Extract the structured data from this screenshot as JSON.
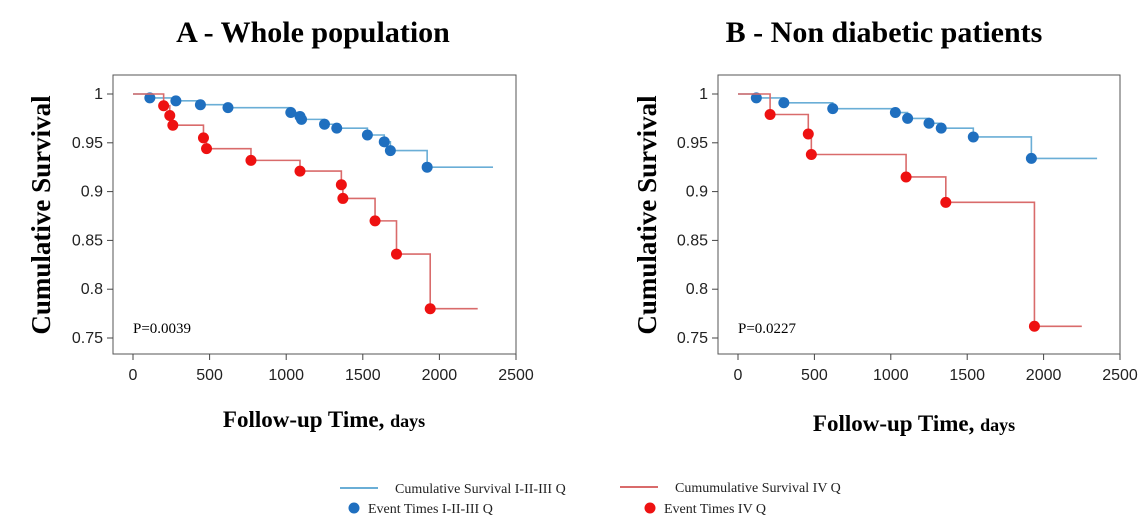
{
  "chart_data": [
    {
      "type": "line",
      "title": "A - Whole population",
      "ylabel": "Cumulative Survival",
      "xlabel": "Follow-up Time,",
      "xlabel_unit": "days",
      "annotation": "P=0.0039",
      "xlim": [
        0,
        2500
      ],
      "ylim": [
        0.75,
        1.0
      ],
      "xticks": [
        "0",
        "500",
        "1000",
        "1500",
        "2000",
        "2500"
      ],
      "yticks": [
        "0.75",
        "0.8",
        "0.85",
        "0.9",
        "0.95",
        "1"
      ],
      "series": [
        {
          "name": "Cumulative Survival I-II-III Q",
          "color": "#6aaed6",
          "steps": [
            [
              0,
              1.0
            ],
            [
              110,
              0.996
            ],
            [
              280,
              0.993
            ],
            [
              440,
              0.989
            ],
            [
              620,
              0.986
            ],
            [
              1030,
              0.981
            ],
            [
              1090,
              0.977
            ],
            [
              1100,
              0.974
            ],
            [
              1250,
              0.969
            ],
            [
              1330,
              0.965
            ],
            [
              1530,
              0.958
            ],
            [
              1640,
              0.951
            ],
            [
              1680,
              0.942
            ],
            [
              1920,
              0.925
            ],
            [
              2350,
              0.925
            ]
          ],
          "events": [
            [
              110,
              0.996
            ],
            [
              280,
              0.993
            ],
            [
              440,
              0.989
            ],
            [
              620,
              0.986
            ],
            [
              1030,
              0.981
            ],
            [
              1090,
              0.977
            ],
            [
              1100,
              0.974
            ],
            [
              1250,
              0.969
            ],
            [
              1330,
              0.965
            ],
            [
              1530,
              0.958
            ],
            [
              1640,
              0.951
            ],
            [
              1680,
              0.942
            ],
            [
              1920,
              0.925
            ]
          ]
        },
        {
          "name": "Cumumulative Survival IV Q",
          "color": "#d96b6b",
          "steps": [
            [
              0,
              1.0
            ],
            [
              200,
              0.988
            ],
            [
              240,
              0.978
            ],
            [
              260,
              0.968
            ],
            [
              460,
              0.955
            ],
            [
              480,
              0.944
            ],
            [
              770,
              0.932
            ],
            [
              1090,
              0.921
            ],
            [
              1360,
              0.907
            ],
            [
              1370,
              0.893
            ],
            [
              1580,
              0.87
            ],
            [
              1720,
              0.836
            ],
            [
              1940,
              0.78
            ],
            [
              2250,
              0.78
            ]
          ],
          "events": [
            [
              200,
              0.988
            ],
            [
              240,
              0.978
            ],
            [
              260,
              0.968
            ],
            [
              460,
              0.955
            ],
            [
              480,
              0.944
            ],
            [
              770,
              0.932
            ],
            [
              1090,
              0.921
            ],
            [
              1360,
              0.907
            ],
            [
              1370,
              0.893
            ],
            [
              1580,
              0.87
            ],
            [
              1720,
              0.836
            ],
            [
              1940,
              0.78
            ]
          ]
        }
      ]
    },
    {
      "type": "line",
      "title": "B - Non diabetic patients",
      "ylabel": "Cumulative Survival",
      "xlabel": "Follow-up Time,",
      "xlabel_unit": "days",
      "annotation": "P=0.0227",
      "xlim": [
        0,
        2500
      ],
      "ylim": [
        0.75,
        1.0
      ],
      "xticks": [
        "0",
        "500",
        "1000",
        "1500",
        "2000",
        "2500"
      ],
      "yticks": [
        "0.75",
        "0.8",
        "0.85",
        "0.9",
        "0.95",
        "1"
      ],
      "series": [
        {
          "name": "Cumulative Survival I-II-III Q",
          "color": "#6aaed6",
          "steps": [
            [
              0,
              1.0
            ],
            [
              120,
              0.996
            ],
            [
              300,
              0.991
            ],
            [
              620,
              0.985
            ],
            [
              1030,
              0.981
            ],
            [
              1110,
              0.975
            ],
            [
              1250,
              0.97
            ],
            [
              1330,
              0.965
            ],
            [
              1540,
              0.956
            ],
            [
              1920,
              0.934
            ],
            [
              2350,
              0.934
            ]
          ],
          "events": [
            [
              120,
              0.996
            ],
            [
              300,
              0.991
            ],
            [
              620,
              0.985
            ],
            [
              1030,
              0.981
            ],
            [
              1110,
              0.975
            ],
            [
              1250,
              0.97
            ],
            [
              1330,
              0.965
            ],
            [
              1540,
              0.956
            ],
            [
              1920,
              0.934
            ]
          ]
        },
        {
          "name": "Cumumulative Survival IV Q",
          "color": "#d96b6b",
          "steps": [
            [
              0,
              1.0
            ],
            [
              210,
              0.979
            ],
            [
              460,
              0.959
            ],
            [
              480,
              0.938
            ],
            [
              1100,
              0.915
            ],
            [
              1360,
              0.889
            ],
            [
              1940,
              0.762
            ],
            [
              2250,
              0.762
            ]
          ],
          "events": [
            [
              210,
              0.979
            ],
            [
              460,
              0.959
            ],
            [
              480,
              0.938
            ],
            [
              1100,
              0.915
            ],
            [
              1360,
              0.889
            ],
            [
              1940,
              0.762
            ]
          ]
        }
      ]
    }
  ],
  "legend": {
    "line_i_iii": "Cumulative Survival I-II-III Q",
    "line_iv": "Cumumulative Survival IV Q",
    "event_i_iii": "Event Times I-II-III Q",
    "event_iv": "Event Times IV Q",
    "line_color_i_iii": "#6aaed6",
    "line_color_iv": "#d96b6b",
    "dot_color_i_iii": "#1f6fbf",
    "dot_color_iv": "#ee1111"
  }
}
